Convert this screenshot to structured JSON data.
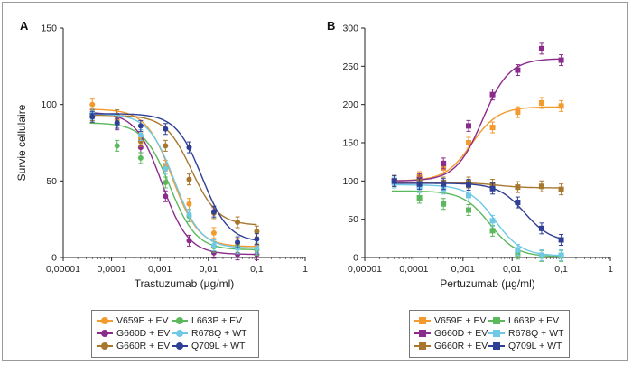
{
  "colors": {
    "V659E": "#f39a2e",
    "G660D": "#8b2b8b",
    "G660R": "#a8772e",
    "L663P": "#5cb85c",
    "R678Q": "#6fc8e6",
    "Q709L": "#2e3f95"
  },
  "chart_data": [
    {
      "panel": "A",
      "type": "scatter",
      "xlabel": "Trastuzumab (µg/ml)",
      "ylabel": "Survie cellulaire",
      "xscale": "log",
      "xlim": [
        1e-05,
        1
      ],
      "ylim": [
        0,
        150
      ],
      "xticks": [
        "0,00001",
        "0,0001",
        "0,001",
        "0,01",
        "0,1",
        "1"
      ],
      "yticks": [
        0,
        50,
        100,
        150
      ],
      "marker": "circle",
      "x": [
        4e-05,
        0.00013,
        0.0004,
        0.0013,
        0.004,
        0.013,
        0.04,
        0.1
      ],
      "series": [
        {
          "name": "V659E + EV",
          "color_key": "V659E",
          "values": [
            100,
            90,
            78,
            60,
            35,
            16,
            9,
            8
          ],
          "fit": {
            "top": 97,
            "bottom": 7,
            "ec50": 0.0018
          }
        },
        {
          "name": "G660D + EV",
          "color_key": "G660D",
          "values": [
            94,
            87,
            72,
            40,
            11,
            3,
            2,
            2
          ],
          "fit": {
            "top": 95,
            "bottom": 2,
            "ec50": 0.0011
          }
        },
        {
          "name": "G660R + EV",
          "color_key": "G660R",
          "values": [
            93,
            93,
            76,
            73,
            51,
            29,
            23,
            17
          ],
          "fit": {
            "top": 93,
            "bottom": 21,
            "ec50": 0.0045
          }
        },
        {
          "name": "L663P + EV",
          "color_key": "L663P",
          "values": [
            92,
            73,
            65,
            49,
            27,
            7,
            7,
            5
          ],
          "fit": {
            "top": 88,
            "bottom": 5,
            "ec50": 0.0016
          }
        },
        {
          "name": "R678Q + WT",
          "color_key": "R678Q",
          "values": [
            94,
            88,
            80,
            58,
            28,
            8,
            6,
            6
          ],
          "fit": {
            "top": 94,
            "bottom": 6,
            "ec50": 0.002
          }
        },
        {
          "name": "Q709L + WT",
          "color_key": "Q709L",
          "values": [
            92,
            88,
            86,
            84,
            72,
            30,
            10,
            12
          ],
          "fit": {
            "top": 94,
            "bottom": 10,
            "ec50": 0.0075
          }
        }
      ]
    },
    {
      "panel": "B",
      "type": "scatter",
      "xlabel": "Pertuzumab (µg/ml)",
      "ylabel": "",
      "xscale": "log",
      "xlim": [
        1e-05,
        1
      ],
      "ylim": [
        0,
        300
      ],
      "xticks": [
        "0,00001",
        "0,0001",
        "0,001",
        "0,01",
        "0,1",
        "1"
      ],
      "yticks": [
        0,
        50,
        100,
        150,
        200,
        250,
        300
      ],
      "marker": "square",
      "x": [
        4e-05,
        0.00013,
        0.0004,
        0.0013,
        0.004,
        0.013,
        0.04,
        0.1
      ],
      "series": [
        {
          "name": "V659E + EV",
          "color_key": "V659E",
          "values": [
            100,
            105,
            117,
            150,
            170,
            190,
            202,
            198
          ],
          "fit": {
            "top": 197,
            "bottom": 100,
            "ec50": 0.0015,
            "increasing": true
          }
        },
        {
          "name": "G660D + EV",
          "color_key": "G660D",
          "values": [
            100,
            102,
            123,
            172,
            213,
            245,
            273,
            258
          ],
          "fit": {
            "top": 260,
            "bottom": 100,
            "ec50": 0.0025,
            "increasing": true
          }
        },
        {
          "name": "G660R + EV",
          "color_key": "G660R",
          "values": [
            100,
            100,
            98,
            98,
            95,
            92,
            93,
            89
          ],
          "fit": {
            "top": 98,
            "bottom": 91,
            "ec50": 0.005
          }
        },
        {
          "name": "L663P + EV",
          "color_key": "L663P",
          "values": [
            98,
            78,
            70,
            62,
            35,
            5,
            2,
            2
          ],
          "fit": {
            "top": 87,
            "bottom": 1,
            "ec50": 0.0035
          }
        },
        {
          "name": "R678Q + WT",
          "color_key": "R678Q",
          "values": [
            98,
            92,
            90,
            81,
            48,
            10,
            3,
            3
          ],
          "fit": {
            "top": 95,
            "bottom": 2,
            "ec50": 0.0045
          }
        },
        {
          "name": "Q709L + WT",
          "color_key": "Q709L",
          "values": [
            100,
            96,
            96,
            95,
            90,
            72,
            38,
            23
          ],
          "fit": {
            "top": 97,
            "bottom": 20,
            "ec50": 0.018
          }
        }
      ]
    }
  ]
}
